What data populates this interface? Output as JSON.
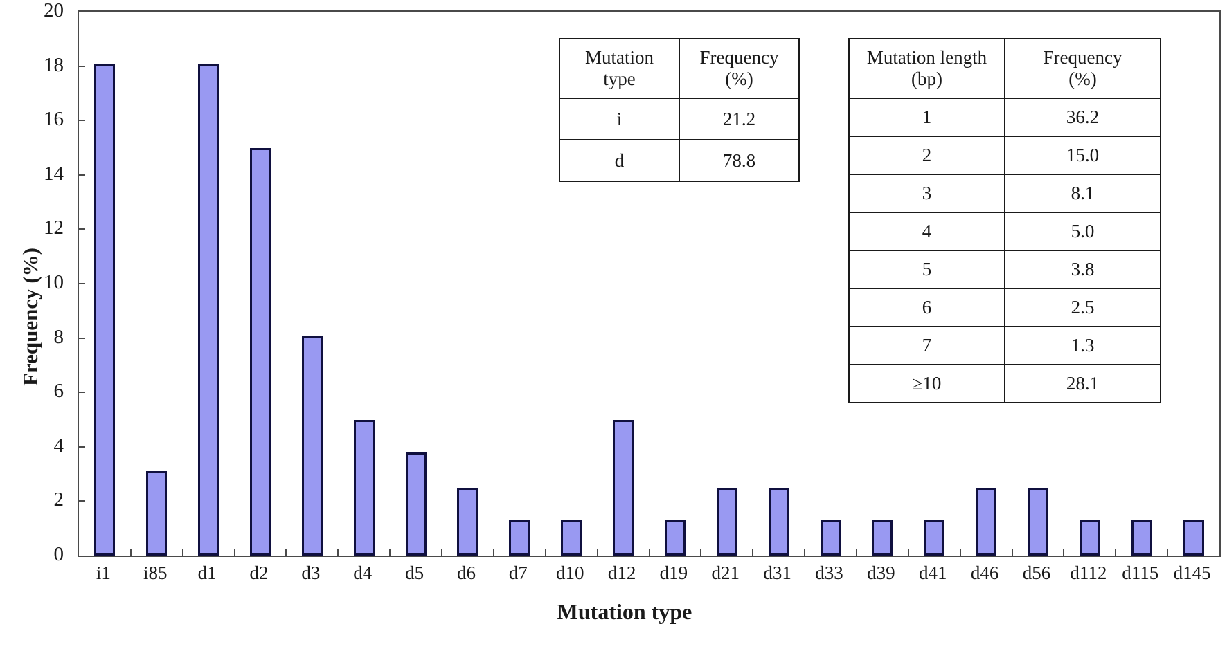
{
  "chart_data": {
    "type": "bar",
    "title": "",
    "xlabel": "Mutation type",
    "ylabel": "Frequency (%)",
    "categories": [
      "i1",
      "i85",
      "d1",
      "d2",
      "d3",
      "d4",
      "d5",
      "d6",
      "d7",
      "d10",
      "d12",
      "d19",
      "d21",
      "d31",
      "d33",
      "d39",
      "d41",
      "d46",
      "d56",
      "d112",
      "d115",
      "d145"
    ],
    "values": [
      18.1,
      3.1,
      18.1,
      15.0,
      8.1,
      5.0,
      3.8,
      2.5,
      1.3,
      1.3,
      5.0,
      1.3,
      2.5,
      2.5,
      1.3,
      1.3,
      1.3,
      2.5,
      2.5,
      1.3,
      1.3,
      1.3
    ],
    "ylim": [
      0,
      20
    ],
    "ytick_step": 2,
    "grid": false,
    "legend": "none",
    "bar_fill": "#9999f2",
    "bar_border": "#10103f",
    "axis_color": "#4a4a4a"
  },
  "tables": [
    {
      "id": "mutation-type-table",
      "headers": [
        [
          "Mutation",
          "type"
        ],
        [
          "Frequency",
          "(%)"
        ]
      ],
      "rows": [
        [
          "i",
          "21.2"
        ],
        [
          "d",
          "78.8"
        ]
      ]
    },
    {
      "id": "mutation-length-table",
      "headers": [
        [
          "Mutation length",
          "(bp)"
        ],
        [
          "Frequency",
          "(%)"
        ]
      ],
      "rows": [
        [
          "1",
          "36.2"
        ],
        [
          "2",
          "15.0"
        ],
        [
          "3",
          "8.1"
        ],
        [
          "4",
          "5.0"
        ],
        [
          "5",
          "3.8"
        ],
        [
          "6",
          "2.5"
        ],
        [
          "7",
          "1.3"
        ],
        [
          "≥10",
          "28.1"
        ]
      ]
    }
  ]
}
